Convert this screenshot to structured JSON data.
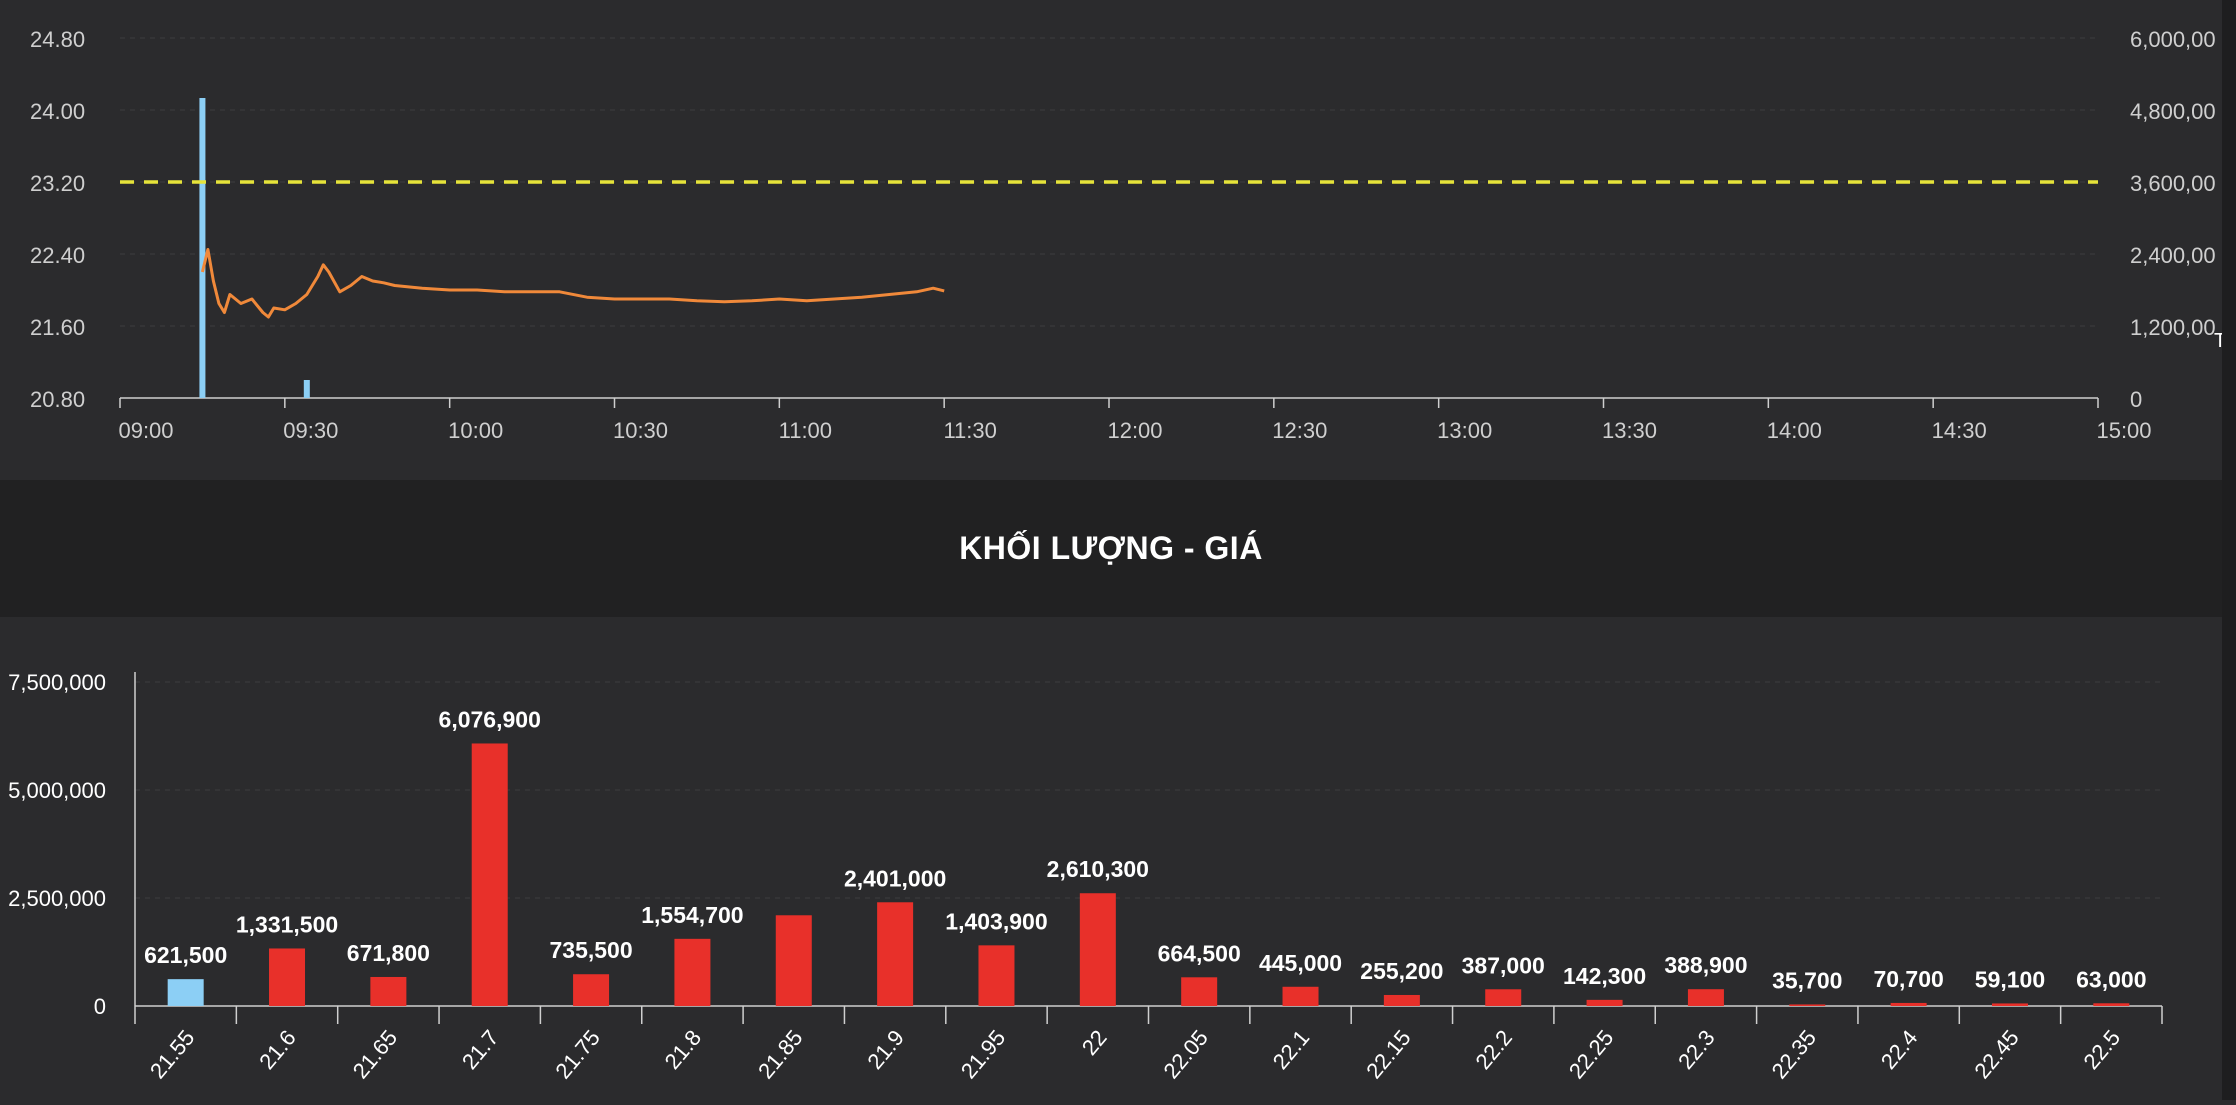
{
  "price_chart": {
    "left_axis_ticks": [
      "24.80",
      "24.00",
      "23.20",
      "22.40",
      "21.60",
      "20.80"
    ],
    "right_axis_ticks": [
      "6,000,00",
      "4,800,00",
      "3,600,00",
      "2,400,00",
      "1,200,00",
      "0"
    ],
    "time_ticks": [
      "09:00",
      "09:30",
      "10:00",
      "10:30",
      "11:00",
      "11:30",
      "12:00",
      "12:30",
      "13:00",
      "13:30",
      "14:00",
      "14:30",
      "15:00"
    ],
    "edge_glyph": "T",
    "colors": {
      "price_line": "#f0893a",
      "reference_line": "#e6e33a",
      "volume_bars": "#8ccff5",
      "axis": "#cfcfcf"
    }
  },
  "volume_section_title": "KHỐI LƯỢNG - GIÁ",
  "chart_data": [
    {
      "type": "line",
      "x_range": [
        "09:00",
        "15:00"
      ],
      "ylim": [
        20.8,
        24.8
      ],
      "y2lim": [
        0,
        6000000
      ],
      "reference_price": 23.2,
      "series": [
        {
          "x": [
            "09:15",
            "09:16",
            "09:17",
            "09:18",
            "09:19",
            "09:20",
            "09:22",
            "09:24",
            "09:26",
            "09:27",
            "09:28",
            "09:30",
            "09:32",
            "09:34",
            "09:36",
            "09:37",
            "09:38",
            "09:40",
            "09:42",
            "09:44",
            "09:46",
            "09:48",
            "09:50",
            "09:55",
            "10:00",
            "10:05",
            "10:10",
            "10:15",
            "10:20",
            "10:25",
            "10:30",
            "10:35",
            "10:40",
            "10:45",
            "10:50",
            "10:55",
            "11:00",
            "11:05",
            "11:10",
            "11:15",
            "11:20",
            "11:25",
            "11:28",
            "11:30"
          ],
          "values": [
            22.2,
            22.45,
            22.1,
            21.85,
            21.75,
            21.95,
            21.85,
            21.9,
            21.75,
            21.7,
            21.8,
            21.78,
            21.85,
            21.95,
            22.15,
            22.28,
            22.2,
            21.98,
            22.05,
            22.15,
            22.1,
            22.08,
            22.05,
            22.02,
            22.0,
            22.0,
            21.98,
            21.98,
            21.98,
            21.92,
            21.9,
            21.9,
            21.9,
            21.88,
            21.87,
            21.88,
            21.9,
            21.88,
            21.9,
            21.92,
            21.95,
            21.98,
            22.02,
            21.99
          ]
        }
      ],
      "volume_bars": [
        {
          "time": "09:15",
          "value": 5000000
        },
        {
          "time": "09:34",
          "value": 300000
        }
      ]
    },
    {
      "type": "bar",
      "title": "KHỐI LƯỢNG - GIÁ",
      "categories": [
        "21.55",
        "21.6",
        "21.65",
        "21.7",
        "21.75",
        "21.8",
        "21.85",
        "21.9",
        "21.95",
        "22",
        "22.05",
        "22.1",
        "22.15",
        "22.2",
        "22.25",
        "22.3",
        "22.35",
        "22.4",
        "22.45",
        "22.5"
      ],
      "values": [
        621500,
        1331500,
        671800,
        6076900,
        735500,
        1554700,
        2100000,
        2401000,
        1403900,
        2610300,
        664500,
        445000,
        255200,
        387000,
        142300,
        388900,
        35700,
        70700,
        59100,
        63000
      ],
      "data_labels": [
        "621,500",
        "1,331,500",
        "671,800",
        "6,076,900",
        "735,500",
        "1,554,700",
        "",
        "2,401,000",
        "1,403,900",
        "2,610,300",
        "664,500",
        "445,000",
        "255,200",
        "387,000",
        "142,300",
        "388,900",
        "35,700",
        "70,700",
        "59,100",
        "63,000"
      ],
      "bar_colors": [
        "#8ccff5",
        "#e8302a",
        "#e8302a",
        "#e8302a",
        "#e8302a",
        "#e8302a",
        "#e8302a",
        "#e8302a",
        "#e8302a",
        "#e8302a",
        "#e8302a",
        "#e8302a",
        "#e8302a",
        "#e8302a",
        "#e8302a",
        "#e8302a",
        "#e8302a",
        "#e8302a",
        "#e8302a",
        "#e8302a"
      ],
      "y_ticks": [
        "7,500,000",
        "5,000,000",
        "2,500,000",
        "0"
      ],
      "ylim": [
        0,
        7500000
      ],
      "grid": true
    }
  ]
}
